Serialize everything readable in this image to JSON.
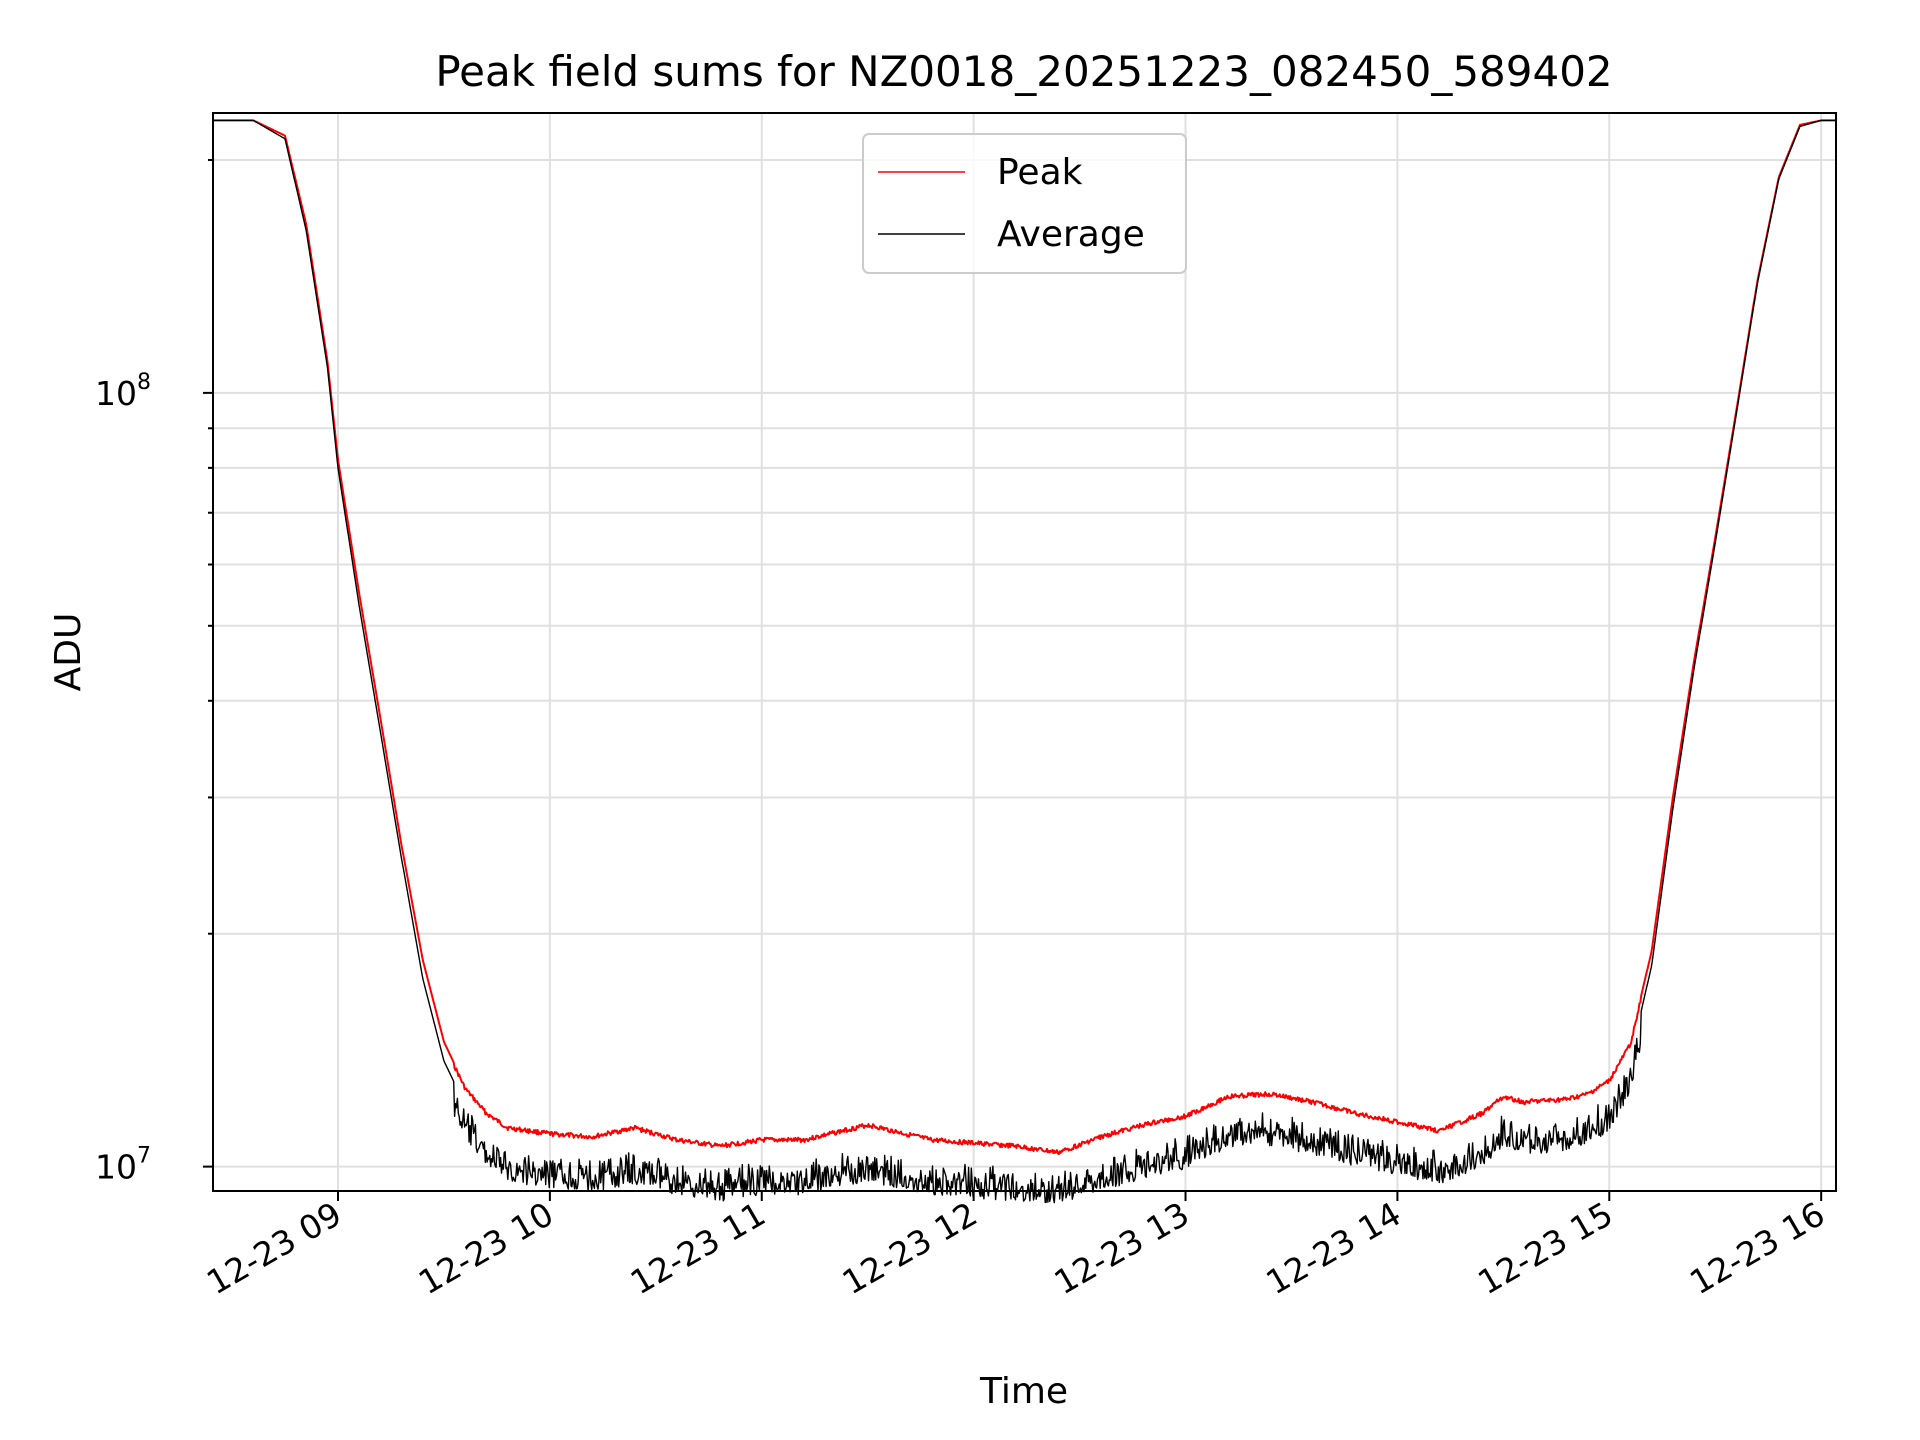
{
  "chart_data": {
    "type": "line",
    "title": "Peak field sums for NZ0018_20251223_082450_589402",
    "xlabel": "Time",
    "ylabel": "ADU",
    "yscale": "log",
    "xlim_hours": [
      8.41,
      16.07
    ],
    "ylim": [
      9300000,
      230000000
    ],
    "grid": true,
    "legend_position": "upper center",
    "x_ticks": [
      {
        "value": 9,
        "label": "12-23 09"
      },
      {
        "value": 10,
        "label": "12-23 10"
      },
      {
        "value": 11,
        "label": "12-23 11"
      },
      {
        "value": 12,
        "label": "12-23 12"
      },
      {
        "value": 13,
        "label": "12-23 13"
      },
      {
        "value": 14,
        "label": "12-23 14"
      },
      {
        "value": 15,
        "label": "12-23 15"
      },
      {
        "value": 16,
        "label": "12-23 16"
      }
    ],
    "y_ticks": [
      {
        "value": 10000000,
        "base": "10",
        "exp": "7"
      },
      {
        "value": 100000000,
        "base": "10",
        "exp": "8"
      }
    ],
    "x_unit": "hour of 2025-12-23",
    "series": [
      {
        "name": "Peak",
        "color": "#ff0000",
        "x": [
          8.41,
          8.6,
          8.75,
          8.85,
          8.95,
          9.0,
          9.1,
          9.2,
          9.3,
          9.4,
          9.5,
          9.6,
          9.7,
          9.8,
          10.0,
          10.2,
          10.4,
          10.6,
          10.8,
          11.0,
          11.2,
          11.5,
          11.8,
          12.0,
          12.2,
          12.4,
          12.6,
          12.8,
          13.0,
          13.2,
          13.4,
          13.6,
          13.8,
          14.0,
          14.2,
          14.4,
          14.5,
          14.6,
          14.8,
          14.9,
          15.0,
          15.1,
          15.2,
          15.3,
          15.4,
          15.5,
          15.6,
          15.7,
          15.8,
          15.9,
          16.0,
          16.07
        ],
        "values": [
          225000000,
          225000000,
          215000000,
          165000000,
          110000000,
          82000000,
          55000000,
          38000000,
          26000000,
          18500000,
          14500000,
          12700000,
          11800000,
          11300000,
          11100000,
          11000000,
          11300000,
          10900000,
          10700000,
          10900000,
          10900000,
          11400000,
          10900000,
          10800000,
          10700000,
          10500000,
          11000000,
          11400000,
          11700000,
          12400000,
          12500000,
          12200000,
          11800000,
          11500000,
          11200000,
          11800000,
          12400000,
          12200000,
          12300000,
          12500000,
          13000000,
          14500000,
          19000000,
          30000000,
          45000000,
          65000000,
          95000000,
          140000000,
          190000000,
          222000000,
          225000000,
          225000000
        ]
      },
      {
        "name": "Average",
        "color": "#000000",
        "x": [
          8.41,
          8.6,
          8.75,
          8.85,
          8.95,
          9.0,
          9.1,
          9.2,
          9.3,
          9.4,
          9.5,
          9.6,
          9.7,
          9.8,
          10.0,
          10.2,
          10.4,
          10.6,
          10.8,
          11.0,
          11.2,
          11.5,
          11.8,
          12.0,
          12.2,
          12.4,
          12.6,
          12.8,
          13.0,
          13.2,
          13.4,
          13.6,
          13.8,
          14.0,
          14.2,
          14.4,
          14.5,
          14.6,
          14.8,
          14.9,
          15.0,
          15.1,
          15.2,
          15.3,
          15.4,
          15.5,
          15.6,
          15.7,
          15.8,
          15.9,
          16.0,
          16.07
        ],
        "values": [
          225000000,
          225000000,
          213000000,
          162000000,
          108000000,
          80000000,
          53000000,
          36500000,
          25000000,
          17500000,
          13700000,
          12000000,
          11100000,
          10600000,
          10400000,
          10300000,
          10500000,
          10200000,
          10000000,
          10200000,
          10200000,
          10600000,
          10200000,
          10100000,
          10000000,
          9900000,
          10300000,
          10700000,
          11000000,
          11700000,
          11800000,
          11500000,
          11100000,
          10800000,
          10500000,
          11100000,
          11700000,
          11500000,
          11600000,
          11800000,
          12300000,
          13800000,
          18200000,
          29000000,
          44000000,
          64000000,
          94000000,
          139000000,
          189000000,
          221000000,
          225000000,
          225000000
        ]
      }
    ]
  }
}
